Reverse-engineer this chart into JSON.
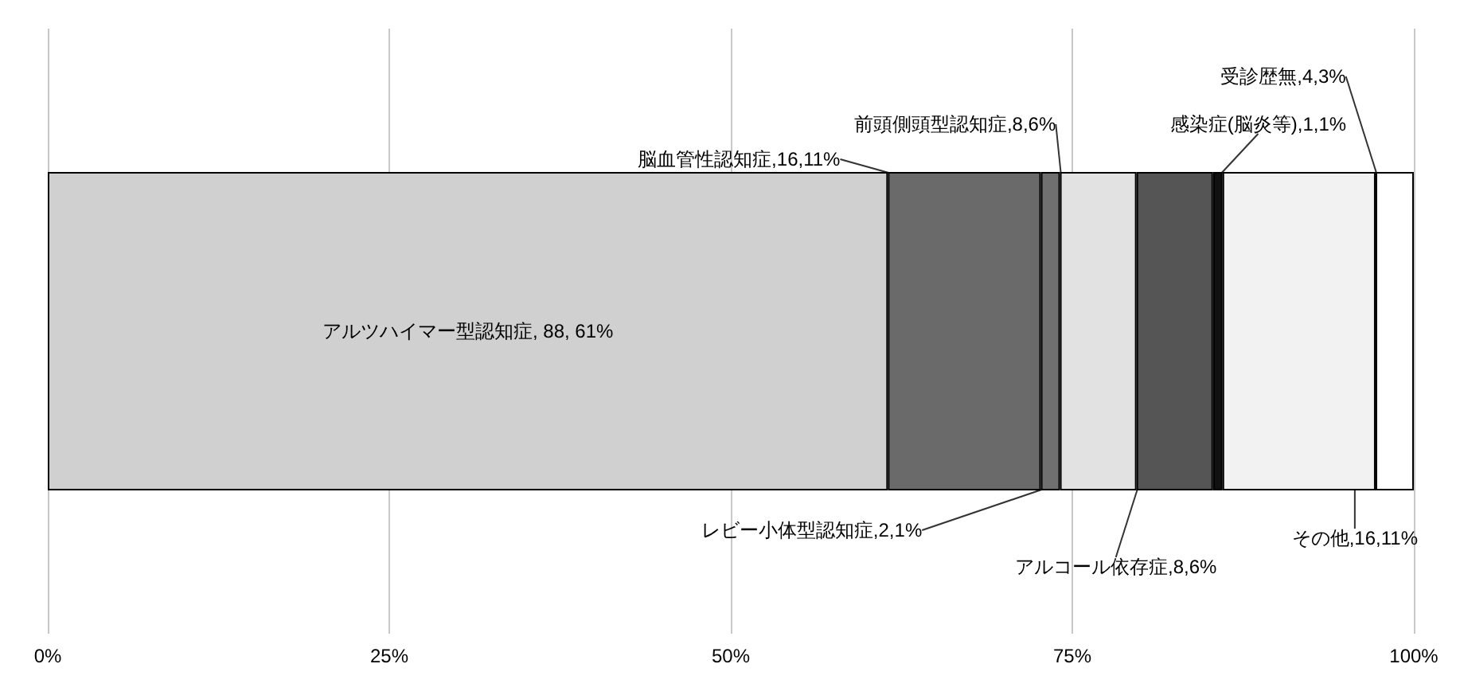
{
  "chart_data": {
    "type": "bar",
    "orientation": "horizontal",
    "stacked": true,
    "categories": [
      null
    ],
    "series": [
      {
        "name": "アルツハイマー型認知症, 88, 61%",
        "color": "#d0d0d0",
        "values": [
          61.5
        ]
      },
      {
        "name": "脳血管性認知症,16,11%",
        "color": "#6a6a6a",
        "values": [
          11.2
        ]
      },
      {
        "name": "レビー小体型認知症,2,1%",
        "color": "#707070",
        "values": [
          1.4
        ]
      },
      {
        "name": "前頭側頭型認知症,8,6%",
        "color": "#e2e2e2",
        "values": [
          5.6
        ]
      },
      {
        "name": "アルコール依存症,8,6%",
        "color": "#555555",
        "values": [
          5.6
        ]
      },
      {
        "name": "感染症(脳炎等),1,1%",
        "color": "#111111",
        "values": [
          0.7
        ]
      },
      {
        "name": "その他,16,11%",
        "color": "#f2f2f2",
        "values": [
          11.2
        ]
      },
      {
        "name": "受診歴無,4,3%",
        "color": "#ffffff",
        "values": [
          2.8
        ]
      }
    ],
    "xlim": [
      0,
      100
    ],
    "xticks": [
      {
        "value": 0,
        "label": "0%"
      },
      {
        "value": 25,
        "label": "25%"
      },
      {
        "value": 50,
        "label": "50%"
      },
      {
        "value": 75,
        "label": "75%"
      },
      {
        "value": 100,
        "label": "100%"
      }
    ],
    "grid": "x",
    "legend": false
  }
}
